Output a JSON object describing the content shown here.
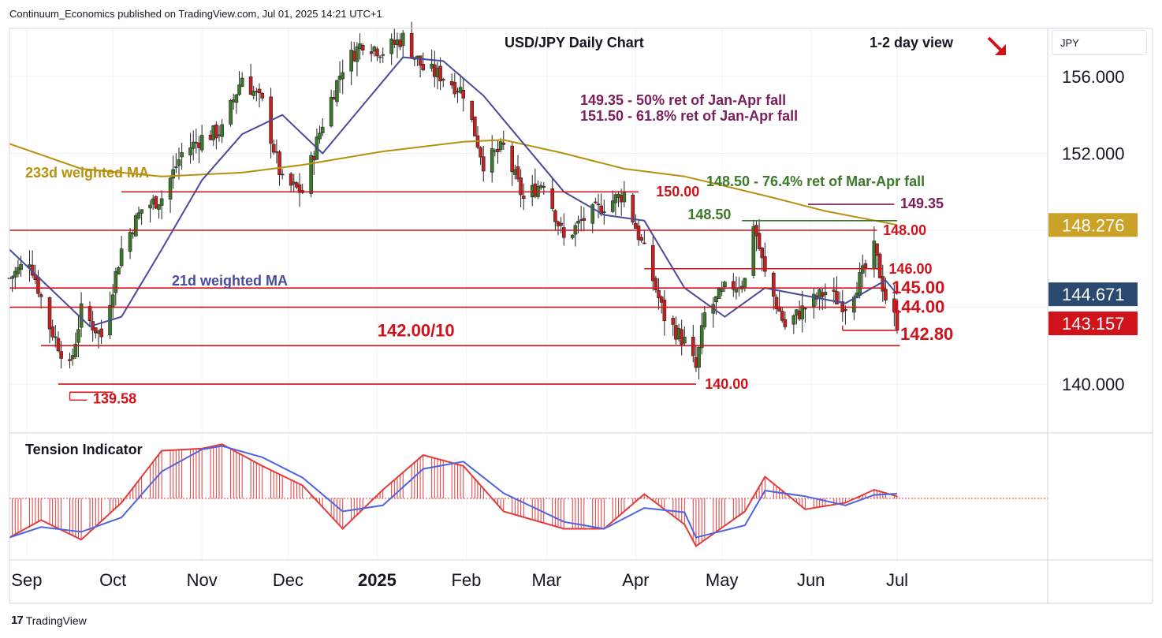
{
  "header": {
    "published_by": "Continuum_Economics published on TradingView.com, Jul 01, 2025 14:21 UTC+1"
  },
  "footer": {
    "logo_text": "TradingView",
    "logo_mark": "17"
  },
  "price_axis": {
    "currency": "JPY",
    "ticks": [
      "156.000",
      "152.000",
      "140.000"
    ],
    "tags": [
      {
        "label": "148.276",
        "value": 148.276,
        "color": "#c9a227",
        "text_color": "#ffffff"
      },
      {
        "label": "144.671",
        "value": 144.671,
        "color": "#2b4a6f",
        "text_color": "#ffffff"
      },
      {
        "label": "143.157",
        "value": 143.157,
        "color": "#d0121b",
        "text_color": "#ffffff"
      }
    ]
  },
  "time_axis": {
    "labels": [
      {
        "text": "Sep",
        "bold": false
      },
      {
        "text": "Oct",
        "bold": false
      },
      {
        "text": "Nov",
        "bold": false
      },
      {
        "text": "Dec",
        "bold": false
      },
      {
        "text": "2025",
        "bold": true
      },
      {
        "text": "Feb",
        "bold": false
      },
      {
        "text": "Mar",
        "bold": false
      },
      {
        "text": "Apr",
        "bold": false
      },
      {
        "text": "May",
        "bold": false
      },
      {
        "text": "Jun",
        "bold": false
      },
      {
        "text": "Jul",
        "bold": false
      }
    ]
  },
  "colors": {
    "red": "#d0121b",
    "green": "#3c7a2b",
    "purple": "#7a1f5c",
    "navy": "#2b4a6f",
    "ma233": "#b8900e",
    "ma21": "#4a4a9a",
    "candle_up": "#3c7a2b",
    "candle_down": "#c8201e",
    "tension": "#e23b3b",
    "tension_ma": "#4d64e0"
  },
  "chart_data": {
    "type": "candlestick",
    "title": "USD/JPY Daily Chart",
    "view_label": "1-2 day view",
    "view_direction": "down",
    "ylim": [
      137.5,
      158.5
    ],
    "y_ticks": [
      140,
      152,
      156
    ],
    "x_range": [
      "2024-08-26",
      "2025-08-29"
    ],
    "grid": true,
    "indicators": [
      {
        "name": "233d weighted MA",
        "color": "#b8900e"
      },
      {
        "name": "21d weighted MA",
        "color": "#4a4a9a"
      }
    ],
    "annotations": [
      {
        "text": "149.35 - 50% ret of Jan-Apr fall",
        "color": "#7a1f5c"
      },
      {
        "text": "151.50 - 61.8% ret of Jan-Apr fall",
        "color": "#7a1f5c"
      },
      {
        "text": "148.50 - 76.4% ret of Mar-Apr fall",
        "color": "#3c7a2b"
      }
    ],
    "levels": [
      {
        "label": "150.00",
        "value": 150.0,
        "color": "#d0121b"
      },
      {
        "label": "149.35",
        "value": 149.35,
        "color": "#7a1f5c"
      },
      {
        "label": "148.50",
        "value": 148.5,
        "color": "#3c7a2b"
      },
      {
        "label": "148.00",
        "value": 148.0,
        "color": "#d0121b"
      },
      {
        "label": "146.00",
        "value": 146.0,
        "color": "#d0121b"
      },
      {
        "label": "145.00",
        "value": 145.0,
        "color": "#d0121b"
      },
      {
        "label": "144.00",
        "value": 144.0,
        "color": "#d0121b"
      },
      {
        "label": "142.80",
        "value": 142.8,
        "color": "#d0121b"
      },
      {
        "label": "142.00/10",
        "value": 142.0,
        "color": "#d0121b"
      },
      {
        "label": "140.00",
        "value": 140.0,
        "color": "#d0121b"
      },
      {
        "label": "139.58",
        "value": 139.58,
        "color": "#d0121b"
      }
    ],
    "price_path": [
      [
        "2024-08-26",
        145.5
      ],
      [
        "2024-09-02",
        146.5
      ],
      [
        "2024-09-09",
        143.0
      ],
      [
        "2024-09-16",
        140.8
      ],
      [
        "2024-09-20",
        143.8
      ],
      [
        "2024-09-27",
        142.5
      ],
      [
        "2024-10-04",
        147.0
      ],
      [
        "2024-10-11",
        149.1
      ],
      [
        "2024-10-18",
        149.7
      ],
      [
        "2024-10-25",
        152.0
      ],
      [
        "2024-11-01",
        152.8
      ],
      [
        "2024-11-08",
        153.2
      ],
      [
        "2024-11-15",
        156.0
      ],
      [
        "2024-11-22",
        154.6
      ],
      [
        "2024-11-29",
        150.5
      ],
      [
        "2024-12-06",
        150.0
      ],
      [
        "2024-12-13",
        153.6
      ],
      [
        "2024-12-20",
        156.5
      ],
      [
        "2024-12-27",
        157.8
      ],
      [
        "2025-01-03",
        157.3
      ],
      [
        "2025-01-10",
        158.0
      ],
      [
        "2025-01-17",
        156.4
      ],
      [
        "2025-01-24",
        156.0
      ],
      [
        "2025-01-31",
        155.2
      ],
      [
        "2025-02-07",
        151.5
      ],
      [
        "2025-02-14",
        152.3
      ],
      [
        "2025-02-21",
        149.6
      ],
      [
        "2025-02-28",
        150.6
      ],
      [
        "2025-03-07",
        147.5
      ],
      [
        "2025-03-14",
        148.6
      ],
      [
        "2025-03-21",
        149.3
      ],
      [
        "2025-03-28",
        149.9
      ],
      [
        "2025-04-04",
        146.9
      ],
      [
        "2025-04-11",
        143.5
      ],
      [
        "2025-04-18",
        142.2
      ],
      [
        "2025-04-22",
        140.8
      ],
      [
        "2025-04-25",
        143.6
      ],
      [
        "2025-05-02",
        144.9
      ],
      [
        "2025-05-09",
        145.4
      ],
      [
        "2025-05-12",
        148.4
      ],
      [
        "2025-05-16",
        145.7
      ],
      [
        "2025-05-23",
        143.0
      ],
      [
        "2025-05-30",
        144.0
      ],
      [
        "2025-06-06",
        144.8
      ],
      [
        "2025-06-13",
        144.1
      ],
      [
        "2025-06-20",
        146.0
      ],
      [
        "2025-06-23",
        147.0
      ],
      [
        "2025-06-27",
        144.5
      ],
      [
        "2025-07-01",
        143.16
      ]
    ],
    "ma233_path": [
      [
        "2024-08-26",
        152.5
      ],
      [
        "2024-09-20",
        151.2
      ],
      [
        "2024-10-18",
        150.8
      ],
      [
        "2024-11-15",
        151.0
      ],
      [
        "2024-12-06",
        151.4
      ],
      [
        "2025-01-03",
        152.1
      ],
      [
        "2025-01-31",
        152.6
      ],
      [
        "2025-02-14",
        152.7
      ],
      [
        "2025-03-07",
        152.0
      ],
      [
        "2025-03-28",
        151.2
      ],
      [
        "2025-04-18",
        150.8
      ],
      [
        "2025-05-16",
        149.8
      ],
      [
        "2025-06-06",
        149.0
      ],
      [
        "2025-07-01",
        148.28
      ]
    ],
    "ma21_path": [
      [
        "2024-08-26",
        147.0
      ],
      [
        "2024-09-09",
        145.0
      ],
      [
        "2024-09-23",
        143.0
      ],
      [
        "2024-10-04",
        143.5
      ],
      [
        "2024-10-18",
        147.0
      ],
      [
        "2024-11-01",
        150.6
      ],
      [
        "2024-11-15",
        153.0
      ],
      [
        "2024-11-29",
        154.0
      ],
      [
        "2024-12-13",
        152.0
      ],
      [
        "2024-12-27",
        154.5
      ],
      [
        "2025-01-10",
        157.0
      ],
      [
        "2025-01-24",
        156.8
      ],
      [
        "2025-02-07",
        155.0
      ],
      [
        "2025-02-21",
        152.5
      ],
      [
        "2025-03-07",
        150.0
      ],
      [
        "2025-03-21",
        148.8
      ],
      [
        "2025-04-04",
        148.5
      ],
      [
        "2025-04-18",
        145.0
      ],
      [
        "2025-05-02",
        143.5
      ],
      [
        "2025-05-16",
        145.0
      ],
      [
        "2025-05-30",
        144.6
      ],
      [
        "2025-06-13",
        144.2
      ],
      [
        "2025-06-27",
        145.4
      ],
      [
        "2025-07-01",
        144.67
      ]
    ],
    "tension_indicator": {
      "name": "Tension Indicator",
      "values": [
        [
          "2024-08-26",
          -0.9
        ],
        [
          "2024-09-06",
          -0.5
        ],
        [
          "2024-09-20",
          -0.95
        ],
        [
          "2024-10-04",
          -0.1
        ],
        [
          "2024-10-18",
          1.1
        ],
        [
          "2024-11-01",
          1.15
        ],
        [
          "2024-11-08",
          1.25
        ],
        [
          "2024-11-22",
          0.75
        ],
        [
          "2024-12-06",
          0.3
        ],
        [
          "2024-12-20",
          -0.7
        ],
        [
          "2025-01-03",
          0.2
        ],
        [
          "2025-01-17",
          1.0
        ],
        [
          "2025-01-31",
          0.75
        ],
        [
          "2025-02-14",
          -0.3
        ],
        [
          "2025-03-07",
          -0.7
        ],
        [
          "2025-03-21",
          -0.7
        ],
        [
          "2025-04-04",
          0.1
        ],
        [
          "2025-04-18",
          -0.6
        ],
        [
          "2025-04-22",
          -1.1
        ],
        [
          "2025-05-09",
          -0.3
        ],
        [
          "2025-05-16",
          0.5
        ],
        [
          "2025-05-30",
          -0.25
        ],
        [
          "2025-06-13",
          -0.1
        ],
        [
          "2025-06-23",
          0.2
        ],
        [
          "2025-07-01",
          0.05
        ]
      ]
    }
  }
}
